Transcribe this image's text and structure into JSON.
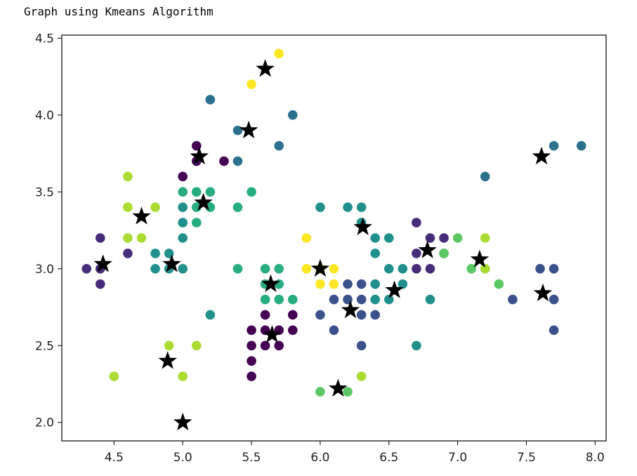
{
  "caption": "Graph using Kmeans Algorithm",
  "chart_data": {
    "type": "scatter",
    "xlim": [
      4.12,
      8.08
    ],
    "ylim": [
      1.88,
      4.52
    ],
    "xticks": [
      4.5,
      5.0,
      5.5,
      6.0,
      6.5,
      7.0,
      7.5,
      8.0
    ],
    "xtick_labels": [
      "4.5",
      "5.0",
      "5.5",
      "6.0",
      "6.5",
      "7.0",
      "7.5",
      "8.0"
    ],
    "yticks": [
      2.0,
      2.5,
      3.0,
      3.5,
      4.0,
      4.5
    ],
    "ytick_labels": [
      "2.0",
      "2.5",
      "3.0",
      "3.5",
      "4.0",
      "4.5"
    ],
    "grid": false,
    "colormap": "viridis",
    "cluster_colors": {
      "0": "#440154",
      "1": "#472c7a",
      "2": "#3b518b",
      "3": "#2c718e",
      "4": "#21908d",
      "5": "#27ad81",
      "6": "#5cc863",
      "7": "#aadc32",
      "8": "#fde725"
    },
    "points": [
      {
        "x": 5.1,
        "y": 3.8,
        "c": 0
      },
      {
        "x": 5.1,
        "y": 3.7,
        "c": 0
      },
      {
        "x": 5.3,
        "y": 3.7,
        "c": 0
      },
      {
        "x": 5.0,
        "y": 3.6,
        "c": 0
      },
      {
        "x": 5.6,
        "y": 2.7,
        "c": 0
      },
      {
        "x": 5.5,
        "y": 2.6,
        "c": 0
      },
      {
        "x": 5.5,
        "y": 2.5,
        "c": 0
      },
      {
        "x": 5.6,
        "y": 2.5,
        "c": 0
      },
      {
        "x": 5.7,
        "y": 2.5,
        "c": 0
      },
      {
        "x": 5.5,
        "y": 2.4,
        "c": 0
      },
      {
        "x": 5.5,
        "y": 2.3,
        "c": 0
      },
      {
        "x": 5.8,
        "y": 2.7,
        "c": 0
      },
      {
        "x": 5.8,
        "y": 2.6,
        "c": 0
      },
      {
        "x": 5.7,
        "y": 2.6,
        "c": 0
      },
      {
        "x": 5.6,
        "y": 2.6,
        "c": 0
      },
      {
        "x": 4.3,
        "y": 3.0,
        "c": 1
      },
      {
        "x": 4.4,
        "y": 3.2,
        "c": 1
      },
      {
        "x": 4.4,
        "y": 3.0,
        "c": 1
      },
      {
        "x": 4.4,
        "y": 2.9,
        "c": 1
      },
      {
        "x": 4.6,
        "y": 3.1,
        "c": 1
      },
      {
        "x": 6.7,
        "y": 3.3,
        "c": 1
      },
      {
        "x": 6.7,
        "y": 3.1,
        "c": 1
      },
      {
        "x": 6.7,
        "y": 3.0,
        "c": 1
      },
      {
        "x": 6.8,
        "y": 3.2,
        "c": 1
      },
      {
        "x": 6.8,
        "y": 3.0,
        "c": 1
      },
      {
        "x": 6.9,
        "y": 3.2,
        "c": 1
      },
      {
        "x": 6.9,
        "y": 3.1,
        "c": 1
      },
      {
        "x": 6.0,
        "y": 2.7,
        "c": 2
      },
      {
        "x": 6.1,
        "y": 2.8,
        "c": 2
      },
      {
        "x": 6.1,
        "y": 2.6,
        "c": 2
      },
      {
        "x": 6.2,
        "y": 2.9,
        "c": 2
      },
      {
        "x": 6.2,
        "y": 2.8,
        "c": 2
      },
      {
        "x": 6.3,
        "y": 2.9,
        "c": 2
      },
      {
        "x": 6.3,
        "y": 2.8,
        "c": 2
      },
      {
        "x": 6.3,
        "y": 2.7,
        "c": 2
      },
      {
        "x": 6.3,
        "y": 2.5,
        "c": 2
      },
      {
        "x": 6.4,
        "y": 2.7,
        "c": 2
      },
      {
        "x": 7.4,
        "y": 2.8,
        "c": 2
      },
      {
        "x": 7.6,
        "y": 3.0,
        "c": 2
      },
      {
        "x": 7.7,
        "y": 3.0,
        "c": 2
      },
      {
        "x": 7.7,
        "y": 2.8,
        "c": 2
      },
      {
        "x": 7.7,
        "y": 2.6,
        "c": 2
      },
      {
        "x": 5.2,
        "y": 4.1,
        "c": 3
      },
      {
        "x": 5.8,
        "y": 4.0,
        "c": 3
      },
      {
        "x": 5.4,
        "y": 3.9,
        "c": 3
      },
      {
        "x": 5.7,
        "y": 3.8,
        "c": 3
      },
      {
        "x": 5.4,
        "y": 3.7,
        "c": 3
      },
      {
        "x": 7.7,
        "y": 3.8,
        "c": 3
      },
      {
        "x": 7.9,
        "y": 3.8,
        "c": 3
      },
      {
        "x": 7.2,
        "y": 3.6,
        "c": 3
      },
      {
        "x": 4.8,
        "y": 3.1,
        "c": 4
      },
      {
        "x": 4.8,
        "y": 3.0,
        "c": 4
      },
      {
        "x": 4.9,
        "y": 3.1,
        "c": 4
      },
      {
        "x": 4.9,
        "y": 3.0,
        "c": 4
      },
      {
        "x": 5.0,
        "y": 3.0,
        "c": 4
      },
      {
        "x": 5.0,
        "y": 3.2,
        "c": 4
      },
      {
        "x": 5.0,
        "y": 3.3,
        "c": 4
      },
      {
        "x": 5.0,
        "y": 3.4,
        "c": 4
      },
      {
        "x": 5.2,
        "y": 2.7,
        "c": 4
      },
      {
        "x": 6.0,
        "y": 3.4,
        "c": 4
      },
      {
        "x": 6.2,
        "y": 3.4,
        "c": 4
      },
      {
        "x": 6.3,
        "y": 3.4,
        "c": 4
      },
      {
        "x": 6.3,
        "y": 3.3,
        "c": 4
      },
      {
        "x": 6.4,
        "y": 3.2,
        "c": 4
      },
      {
        "x": 6.4,
        "y": 3.1,
        "c": 4
      },
      {
        "x": 6.5,
        "y": 3.2,
        "c": 4
      },
      {
        "x": 6.5,
        "y": 3.0,
        "c": 4
      },
      {
        "x": 6.6,
        "y": 3.0,
        "c": 4
      },
      {
        "x": 6.6,
        "y": 2.9,
        "c": 4
      },
      {
        "x": 6.4,
        "y": 2.9,
        "c": 4
      },
      {
        "x": 6.4,
        "y": 2.8,
        "c": 4
      },
      {
        "x": 6.5,
        "y": 2.8,
        "c": 4
      },
      {
        "x": 6.8,
        "y": 2.8,
        "c": 4
      },
      {
        "x": 6.7,
        "y": 2.5,
        "c": 4
      },
      {
        "x": 5.0,
        "y": 3.5,
        "c": 5
      },
      {
        "x": 5.1,
        "y": 3.5,
        "c": 5
      },
      {
        "x": 5.2,
        "y": 3.5,
        "c": 5
      },
      {
        "x": 5.1,
        "y": 3.4,
        "c": 5
      },
      {
        "x": 5.2,
        "y": 3.4,
        "c": 5
      },
      {
        "x": 5.1,
        "y": 3.3,
        "c": 5
      },
      {
        "x": 5.4,
        "y": 3.4,
        "c": 5
      },
      {
        "x": 5.5,
        "y": 3.5,
        "c": 5
      },
      {
        "x": 5.4,
        "y": 3.0,
        "c": 5
      },
      {
        "x": 5.6,
        "y": 3.0,
        "c": 5
      },
      {
        "x": 5.7,
        "y": 3.0,
        "c": 5
      },
      {
        "x": 5.6,
        "y": 2.9,
        "c": 5
      },
      {
        "x": 5.7,
        "y": 2.9,
        "c": 5
      },
      {
        "x": 5.6,
        "y": 2.8,
        "c": 5
      },
      {
        "x": 5.7,
        "y": 2.8,
        "c": 5
      },
      {
        "x": 5.8,
        "y": 2.8,
        "c": 5
      },
      {
        "x": 6.9,
        "y": 3.1,
        "c": 6
      },
      {
        "x": 7.0,
        "y": 3.2,
        "c": 6
      },
      {
        "x": 7.1,
        "y": 3.0,
        "c": 6
      },
      {
        "x": 7.2,
        "y": 3.0,
        "c": 6
      },
      {
        "x": 7.3,
        "y": 2.9,
        "c": 6
      },
      {
        "x": 6.0,
        "y": 2.2,
        "c": 6
      },
      {
        "x": 6.2,
        "y": 2.2,
        "c": 6
      },
      {
        "x": 4.6,
        "y": 3.6,
        "c": 7
      },
      {
        "x": 4.6,
        "y": 3.4,
        "c": 7
      },
      {
        "x": 4.6,
        "y": 3.2,
        "c": 7
      },
      {
        "x": 4.7,
        "y": 3.2,
        "c": 7
      },
      {
        "x": 4.8,
        "y": 3.4,
        "c": 7
      },
      {
        "x": 4.9,
        "y": 2.5,
        "c": 7
      },
      {
        "x": 5.1,
        "y": 2.5,
        "c": 7
      },
      {
        "x": 4.5,
        "y": 2.3,
        "c": 7
      },
      {
        "x": 5.0,
        "y": 2.3,
        "c": 7
      },
      {
        "x": 6.3,
        "y": 2.3,
        "c": 7
      },
      {
        "x": 7.2,
        "y": 3.2,
        "c": 7
      },
      {
        "x": 7.2,
        "y": 3.0,
        "c": 7
      },
      {
        "x": 5.7,
        "y": 4.4,
        "c": 8
      },
      {
        "x": 5.5,
        "y": 4.2,
        "c": 8
      },
      {
        "x": 5.9,
        "y": 3.2,
        "c": 8
      },
      {
        "x": 5.9,
        "y": 3.0,
        "c": 8
      },
      {
        "x": 6.0,
        "y": 3.0,
        "c": 8
      },
      {
        "x": 6.1,
        "y": 3.0,
        "c": 8
      },
      {
        "x": 6.0,
        "y": 2.9,
        "c": 8
      },
      {
        "x": 6.1,
        "y": 2.9,
        "c": 8
      }
    ],
    "centroids": {
      "marker": "star",
      "color": "#000000",
      "points": [
        {
          "x": 5.6,
          "y": 4.3
        },
        {
          "x": 5.48,
          "y": 3.9
        },
        {
          "x": 5.12,
          "y": 3.73
        },
        {
          "x": 7.61,
          "y": 3.73
        },
        {
          "x": 5.15,
          "y": 3.43
        },
        {
          "x": 4.7,
          "y": 3.34
        },
        {
          "x": 6.31,
          "y": 3.27
        },
        {
          "x": 6.78,
          "y": 3.12
        },
        {
          "x": 7.16,
          "y": 3.06
        },
        {
          "x": 4.42,
          "y": 3.03
        },
        {
          "x": 4.92,
          "y": 3.03
        },
        {
          "x": 6.0,
          "y": 3.0
        },
        {
          "x": 5.64,
          "y": 2.9
        },
        {
          "x": 6.54,
          "y": 2.86
        },
        {
          "x": 7.62,
          "y": 2.84
        },
        {
          "x": 6.22,
          "y": 2.73
        },
        {
          "x": 5.65,
          "y": 2.57
        },
        {
          "x": 4.89,
          "y": 2.4
        },
        {
          "x": 6.13,
          "y": 2.22
        },
        {
          "x": 5.0,
          "y": 2.0
        }
      ]
    }
  }
}
